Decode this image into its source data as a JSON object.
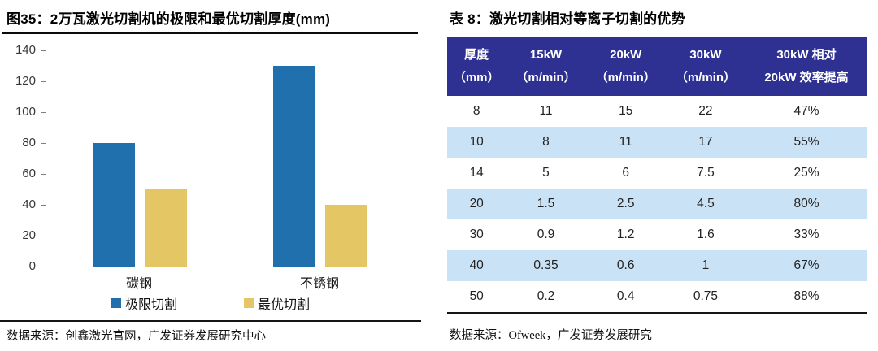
{
  "chart_panel": {
    "title": "图35：2万瓦激光切割机的极限和最优切割厚度(mm)",
    "source": "数据来源：创鑫激光官网，广发证券发展研究中心"
  },
  "table_panel": {
    "title": "表 8：激光切割相对等离子切割的优势",
    "source": "数据来源：Ofweek，广发证券发展研究",
    "colors": {
      "header_bg": "#2E3192",
      "header_text": "#FFFFFF",
      "row_alt_bg": "#C9E2F5",
      "row_bg": "#FFFFFF"
    }
  },
  "chart_data": [
    {
      "type": "bar",
      "title": "2万瓦激光切割机的极限和最优切割厚度(mm)",
      "categories": [
        "碳钢",
        "不锈钢"
      ],
      "series": [
        {
          "name": "极限切割",
          "color": "#2070AE",
          "values": [
            80,
            130
          ]
        },
        {
          "name": "最优切割",
          "color": "#E4C664",
          "values": [
            50,
            40
          ]
        }
      ],
      "ylim": [
        0,
        140
      ],
      "ytick_step": 20,
      "xlabel": "",
      "ylabel": "",
      "grid": false,
      "legend_position": "bottom"
    },
    {
      "type": "table",
      "title": "激光切割相对等离子切割的优势",
      "columns": [
        [
          "厚度",
          "（mm）"
        ],
        [
          "15kW",
          "（m/min）"
        ],
        [
          "20kW",
          "（m/min）"
        ],
        [
          "30kW",
          "（m/min）"
        ],
        [
          "30kW 相对",
          "20kW 效率提高"
        ]
      ],
      "rows": [
        [
          "8",
          "11",
          "15",
          "22",
          "47%"
        ],
        [
          "10",
          "8",
          "11",
          "17",
          "55%"
        ],
        [
          "14",
          "5",
          "6",
          "7.5",
          "25%"
        ],
        [
          "20",
          "1.5",
          "2.5",
          "4.5",
          "80%"
        ],
        [
          "30",
          "0.9",
          "1.2",
          "1.6",
          "33%"
        ],
        [
          "40",
          "0.35",
          "0.6",
          "1",
          "67%"
        ],
        [
          "50",
          "0.2",
          "0.4",
          "0.75",
          "88%"
        ]
      ]
    }
  ]
}
